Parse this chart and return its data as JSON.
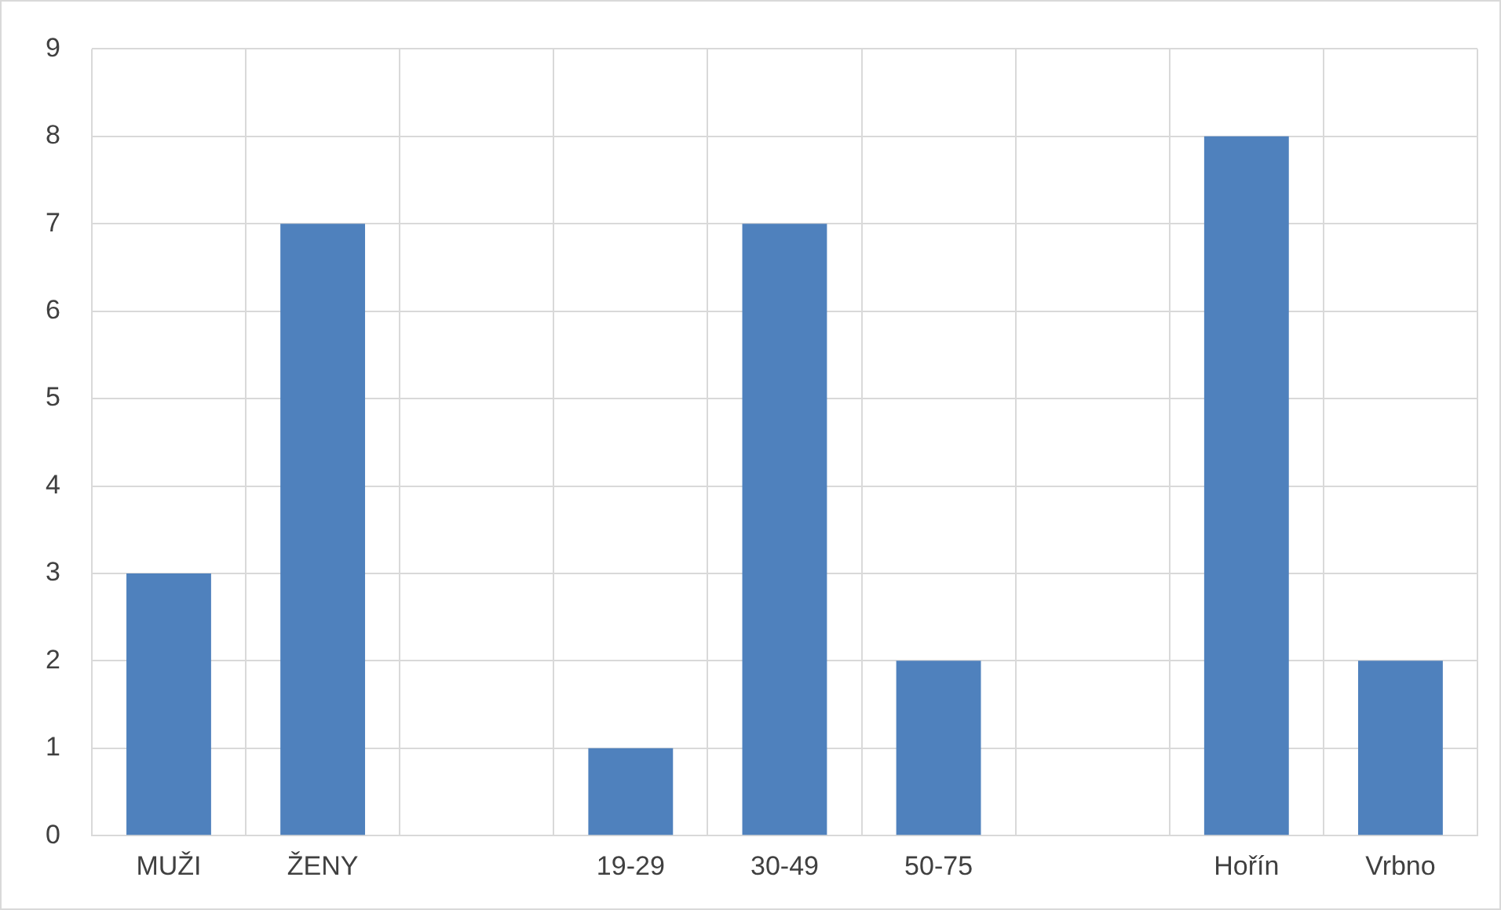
{
  "chart_data": {
    "type": "bar",
    "categories": [
      "MUŽI",
      "ŽENY",
      null,
      "19-29",
      "30-49",
      "50-75",
      null,
      "Hořín",
      "Vrbno"
    ],
    "values": [
      3,
      7,
      null,
      1,
      7,
      2,
      null,
      8,
      2
    ],
    "color": "#4f81bd",
    "ylim": [
      0,
      9
    ],
    "yticks": [
      0,
      1,
      2,
      3,
      4,
      5,
      6,
      7,
      8,
      9
    ],
    "grid": true,
    "legend": false
  }
}
